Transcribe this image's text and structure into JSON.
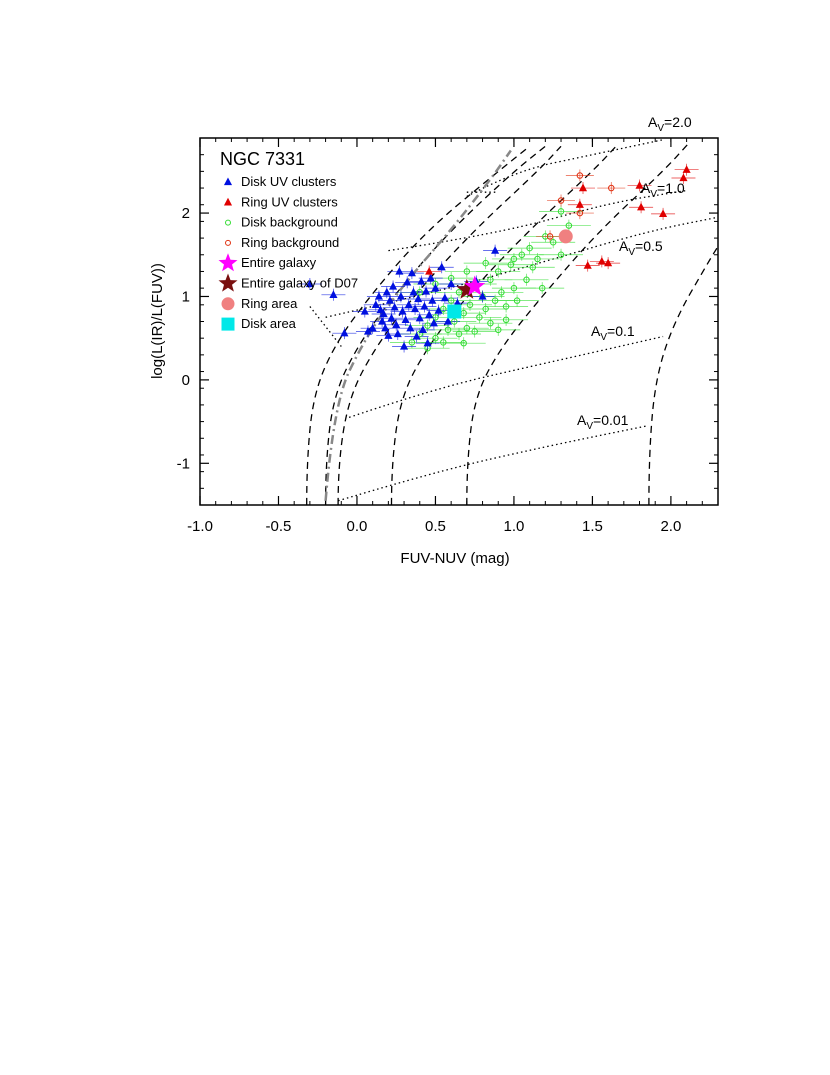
{
  "chart_data": {
    "type": "scatter",
    "title": "NGC 7331",
    "xlabel": "FUV-NUV (mag)",
    "ylabel": "log(L(IR)/L(FUV))",
    "xlim": [
      -1.0,
      2.3
    ],
    "ylim": [
      -1.5,
      2.9
    ],
    "x_ticks": [
      "-1.0",
      "-0.5",
      "0.0",
      "0.5",
      "1.0",
      "1.5",
      "2.0"
    ],
    "y_ticks": [
      "-1",
      "0",
      "1",
      "2"
    ],
    "grid": false,
    "legend_position": "top-left",
    "colors": {
      "disk_uv": "#0010e0",
      "ring_uv": "#e00000",
      "disk_bg": "#33dd33",
      "ring_bg": "#e03010",
      "entire": "#ff00ff",
      "d07": "#7a1010",
      "ring_area": "#f08080",
      "disk_area": "#00e8e8"
    },
    "series": [
      {
        "name": "Disk UV clusters",
        "marker": "triangle",
        "color": "#0010e0",
        "points": [
          [
            -0.08,
            0.56
          ],
          [
            0.07,
            0.58
          ],
          [
            0.1,
            0.62
          ],
          [
            0.12,
            0.9
          ],
          [
            0.14,
            1.0
          ],
          [
            0.15,
            0.84
          ],
          [
            0.16,
            0.7
          ],
          [
            0.17,
            0.79
          ],
          [
            0.18,
            0.62
          ],
          [
            0.19,
            1.05
          ],
          [
            0.2,
            0.53
          ],
          [
            0.21,
            0.95
          ],
          [
            0.22,
            0.74
          ],
          [
            0.23,
            1.12
          ],
          [
            0.24,
            0.87
          ],
          [
            0.25,
            0.66
          ],
          [
            0.26,
            0.55
          ],
          [
            0.27,
            1.3
          ],
          [
            0.28,
            1.0
          ],
          [
            0.29,
            0.82
          ],
          [
            0.3,
            0.4
          ],
          [
            0.31,
            0.72
          ],
          [
            0.32,
            1.17
          ],
          [
            0.33,
            0.9
          ],
          [
            0.34,
            0.62
          ],
          [
            0.35,
            1.28
          ],
          [
            0.36,
            1.05
          ],
          [
            0.37,
            0.85
          ],
          [
            0.38,
            0.52
          ],
          [
            0.39,
            0.97
          ],
          [
            0.4,
            0.74
          ],
          [
            0.41,
            1.18
          ],
          [
            0.42,
            0.6
          ],
          [
            0.43,
            0.88
          ],
          [
            0.44,
            1.06
          ],
          [
            0.45,
            0.44
          ],
          [
            0.46,
            0.78
          ],
          [
            0.47,
            1.22
          ],
          [
            0.48,
            0.95
          ],
          [
            0.49,
            0.68
          ],
          [
            0.5,
            1.1
          ],
          [
            0.52,
            0.83
          ],
          [
            0.54,
            1.35
          ],
          [
            0.56,
            0.98
          ],
          [
            0.58,
            0.7
          ],
          [
            0.6,
            1.15
          ],
          [
            0.64,
            0.92
          ],
          [
            0.7,
            1.12
          ],
          [
            0.76,
            1.18
          ],
          [
            0.8,
            1.0
          ],
          [
            0.88,
            1.55
          ],
          [
            -0.3,
            1.15
          ],
          [
            -0.15,
            1.02
          ],
          [
            0.05,
            0.82
          ]
        ]
      },
      {
        "name": "Ring UV clusters",
        "marker": "triangle",
        "color": "#e00000",
        "points": [
          [
            1.42,
            2.1
          ],
          [
            1.44,
            2.3
          ],
          [
            1.47,
            1.37
          ],
          [
            1.56,
            1.42
          ],
          [
            1.6,
            1.4
          ],
          [
            1.8,
            2.33
          ],
          [
            1.81,
            2.07
          ],
          [
            1.95,
            1.99
          ],
          [
            2.08,
            2.42
          ],
          [
            2.1,
            2.52
          ],
          [
            0.46,
            1.3
          ]
        ]
      },
      {
        "name": "Disk background",
        "marker": "open-circle",
        "color": "#33dd33",
        "points": [
          [
            0.4,
            0.55
          ],
          [
            0.45,
            0.65
          ],
          [
            0.5,
            0.75
          ],
          [
            0.5,
            0.5
          ],
          [
            0.55,
            0.85
          ],
          [
            0.58,
            0.6
          ],
          [
            0.6,
            0.95
          ],
          [
            0.62,
            0.7
          ],
          [
            0.65,
            1.05
          ],
          [
            0.68,
            0.8
          ],
          [
            0.7,
            0.62
          ],
          [
            0.72,
            0.9
          ],
          [
            0.75,
            1.15
          ],
          [
            0.78,
            0.75
          ],
          [
            0.8,
            1.0
          ],
          [
            0.82,
            0.85
          ],
          [
            0.85,
            1.2
          ],
          [
            0.88,
            0.95
          ],
          [
            0.9,
            1.3
          ],
          [
            0.92,
            1.05
          ],
          [
            0.95,
            0.88
          ],
          [
            0.98,
            1.38
          ],
          [
            1.0,
            1.1
          ],
          [
            1.02,
            0.95
          ],
          [
            1.05,
            1.5
          ],
          [
            1.08,
            1.2
          ],
          [
            1.1,
            1.58
          ],
          [
            1.12,
            1.35
          ],
          [
            1.15,
            1.45
          ],
          [
            1.2,
            1.72
          ],
          [
            1.25,
            1.65
          ],
          [
            1.3,
            2.02
          ],
          [
            1.35,
            1.85
          ],
          [
            0.55,
            0.45
          ],
          [
            0.65,
            0.55
          ],
          [
            0.75,
            0.58
          ],
          [
            0.85,
            0.68
          ],
          [
            0.95,
            0.72
          ],
          [
            0.35,
            0.45
          ],
          [
            0.45,
            0.38
          ],
          [
            1.0,
            1.45
          ],
          [
            0.7,
            1.3
          ],
          [
            0.6,
            1.22
          ],
          [
            0.5,
            1.15
          ],
          [
            0.4,
            1.05
          ],
          [
            1.3,
            1.5
          ],
          [
            0.9,
            0.6
          ],
          [
            0.68,
            0.44
          ],
          [
            1.18,
            1.1
          ],
          [
            0.82,
            1.4
          ]
        ]
      },
      {
        "name": "Ring background",
        "marker": "open-circle",
        "color": "#e03010",
        "points": [
          [
            1.42,
            2.45
          ],
          [
            1.3,
            2.15
          ],
          [
            1.62,
            2.3
          ],
          [
            1.42,
            2.0
          ],
          [
            1.23,
            1.72
          ]
        ]
      },
      {
        "name": "Entire galaxy",
        "marker": "star",
        "color": "#ff00ff",
        "points": [
          [
            0.75,
            1.12
          ]
        ]
      },
      {
        "name": "Entire galaxy of D07",
        "marker": "star",
        "color": "#7a1010",
        "points": [
          [
            0.7,
            1.08
          ]
        ]
      },
      {
        "name": "Ring area",
        "marker": "filled-circle",
        "color": "#f08080",
        "points": [
          [
            1.33,
            1.72
          ]
        ]
      },
      {
        "name": "Disk area",
        "marker": "square",
        "color": "#00e8e8",
        "points": [
          [
            0.62,
            0.82
          ]
        ]
      }
    ],
    "annotations": [
      {
        "text": "A",
        "sub": "V",
        "value": "=2.0"
      },
      {
        "text": "A",
        "sub": "V",
        "value": "=1.0"
      },
      {
        "text": "A",
        "sub": "V",
        "value": "=0.5"
      },
      {
        "text": "A",
        "sub": "V",
        "value": "=0.1"
      },
      {
        "text": "A",
        "sub": "V",
        "value": "=0.01"
      }
    ]
  }
}
